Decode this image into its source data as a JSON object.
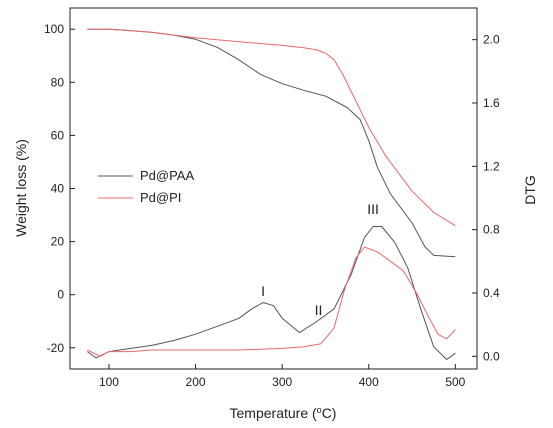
{
  "chart_data": {
    "type": "line",
    "xlabel": "Temperature (",
    "xlabel_degree": "o",
    "xlabel_unit": "C)",
    "ylabel_left": "Weight loss (%)",
    "ylabel_right": "DTG",
    "xlim": [
      55,
      525
    ],
    "ylim_left": [
      -28,
      108
    ],
    "ylim_right": [
      -0.08,
      2.2
    ],
    "x_ticks": [
      100,
      200,
      300,
      400,
      500
    ],
    "y_left_ticks": [
      -20,
      0,
      20,
      40,
      60,
      80,
      100
    ],
    "y_right_ticks": [
      "0.0",
      "0.4",
      "0.8",
      "1.2",
      "1.6",
      "2.0"
    ],
    "y_right_tick_values": [
      0.0,
      0.4,
      0.8,
      1.2,
      1.6,
      2.0
    ],
    "legend_position": "center-left",
    "colors": {
      "Pd@PAA": "#555555",
      "Pd@PI": "#e8696b"
    },
    "series": [
      {
        "name": "Pd@PAA",
        "axis": "left",
        "x": [
          75,
          100,
          125,
          150,
          175,
          200,
          225,
          250,
          275,
          300,
          325,
          350,
          375,
          390,
          400,
          410,
          425,
          450,
          465,
          475,
          500
        ],
        "values": [
          100,
          100,
          99.5,
          98.8,
          97.8,
          96.2,
          93.2,
          88.5,
          83,
          79.5,
          77,
          74.8,
          70.5,
          66,
          58,
          48,
          38,
          27,
          18,
          14.8,
          14.3
        ]
      },
      {
        "name": "Pd@PI",
        "axis": "left",
        "x": [
          75,
          100,
          150,
          200,
          250,
          300,
          325,
          340,
          350,
          360,
          370,
          385,
          400,
          420,
          450,
          475,
          500
        ],
        "values": [
          100,
          100,
          98.8,
          96.8,
          95.3,
          93.9,
          93,
          92.2,
          91,
          88.5,
          83,
          73,
          63,
          52,
          39,
          31,
          26
        ]
      },
      {
        "name": "Pd@PAA",
        "axis": "right",
        "x": [
          75,
          85,
          100,
          125,
          150,
          175,
          200,
          225,
          250,
          265,
          278,
          290,
          300,
          320,
          340,
          360,
          380,
          395,
          405,
          415,
          430,
          445,
          460,
          475,
          490,
          500
        ],
        "values": [
          0.03,
          -0.01,
          0.03,
          0.05,
          0.07,
          0.1,
          0.14,
          0.19,
          0.24,
          0.3,
          0.34,
          0.32,
          0.24,
          0.15,
          0.22,
          0.3,
          0.52,
          0.75,
          0.82,
          0.82,
          0.72,
          0.56,
          0.3,
          0.06,
          -0.02,
          0.02
        ]
      },
      {
        "name": "Pd@PI",
        "axis": "right",
        "x": [
          75,
          90,
          100,
          125,
          150,
          200,
          250,
          300,
          325,
          345,
          360,
          372,
          385,
          395,
          410,
          425,
          440,
          455,
          470,
          480,
          490,
          500
        ],
        "values": [
          0.04,
          0.0,
          0.03,
          0.03,
          0.04,
          0.04,
          0.04,
          0.05,
          0.06,
          0.08,
          0.18,
          0.42,
          0.62,
          0.69,
          0.66,
          0.6,
          0.54,
          0.4,
          0.24,
          0.14,
          0.11,
          0.17
        ]
      }
    ],
    "annotations": [
      {
        "text": "I",
        "x": 278,
        "y_right": 0.38
      },
      {
        "text": "II",
        "x": 342,
        "y_right": 0.26
      },
      {
        "text": "III",
        "x": 405,
        "y_right": 0.9
      }
    ]
  }
}
